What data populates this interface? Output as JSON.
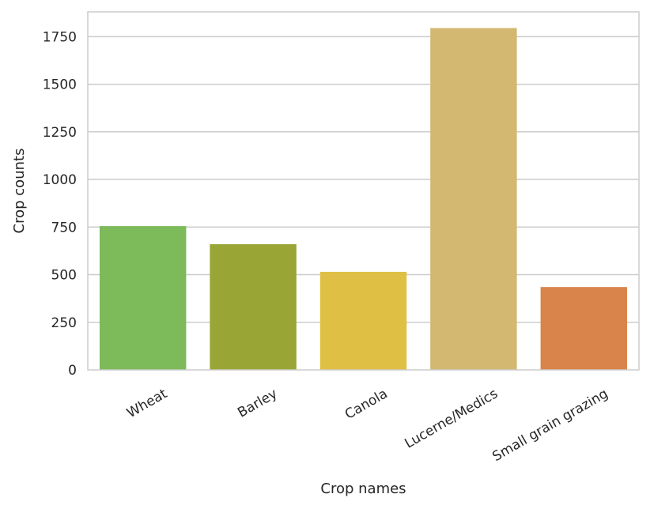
{
  "chart_data": {
    "type": "bar",
    "title": "",
    "xlabel": "Crop names",
    "ylabel": "Crop counts",
    "categories": [
      "Wheat",
      "Barley",
      "Canola",
      "Lucerne/Medics",
      "Small grain grazing"
    ],
    "values": [
      755,
      660,
      515,
      1795,
      435
    ],
    "colors": [
      "#7cba5a",
      "#99a535",
      "#e0c044",
      "#d3b872",
      "#d9844a"
    ],
    "ylim": [
      0,
      1880
    ],
    "yticks": [
      0,
      250,
      500,
      750,
      1000,
      1250,
      1500,
      1750
    ],
    "grid": "y",
    "legend": "none",
    "x_tick_rotation_deg": 30
  }
}
